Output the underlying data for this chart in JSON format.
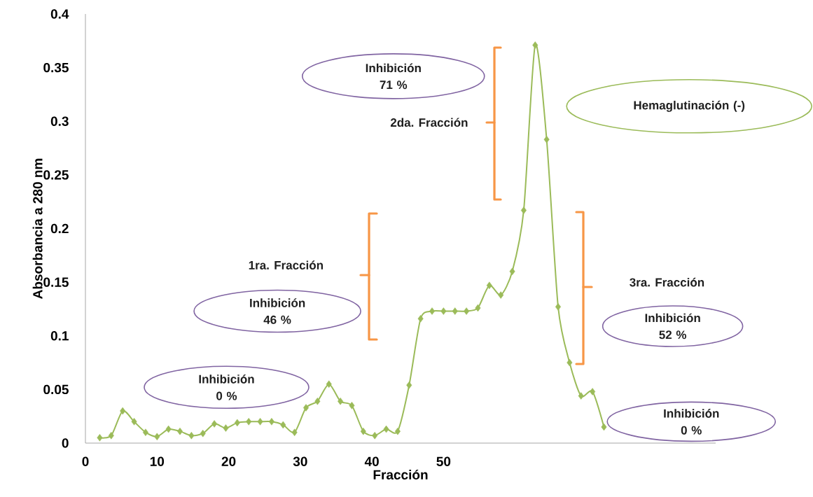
{
  "chart_data": {
    "type": "line",
    "xlabel": "Fracción",
    "ylabel": "Absorbancia a 280 nm",
    "x": [
      2.0,
      3.6,
      5.2,
      6.8,
      8.4,
      10.0,
      11.6,
      13.2,
      14.8,
      16.4,
      18.0,
      19.6,
      21.2,
      22.8,
      24.4,
      26.0,
      27.6,
      29.2,
      30.8,
      32.4,
      34.0,
      35.6,
      37.2,
      38.8,
      40.4,
      42.0,
      43.6,
      45.2,
      46.8,
      48.4,
      50.0,
      51.6,
      53.2,
      54.8,
      56.4,
      58.0,
      59.6,
      61.2,
      62.8,
      64.4,
      66.0,
      67.6,
      69.2,
      70.8,
      72.4
    ],
    "values": [
      0.005,
      0.007,
      0.03,
      0.02,
      0.01,
      0.006,
      0.013,
      0.011,
      0.007,
      0.009,
      0.018,
      0.014,
      0.019,
      0.02,
      0.02,
      0.02,
      0.017,
      0.01,
      0.033,
      0.039,
      0.055,
      0.039,
      0.035,
      0.011,
      0.007,
      0.013,
      0.011,
      0.054,
      0.116,
      0.123,
      0.123,
      0.123,
      0.123,
      0.126,
      0.147,
      0.138,
      0.16,
      0.217,
      0.371,
      0.283,
      0.127,
      0.075,
      0.044,
      0.048,
      0.015
    ],
    "color": "#9bbb59",
    "marker": "diamond",
    "xlim": [
      0,
      88
    ],
    "xticks": [
      0,
      10,
      20,
      30,
      40,
      50
    ],
    "ylim": [
      0,
      0.4
    ],
    "yticks": [
      0,
      0.05,
      0.1,
      0.15,
      0.2,
      0.25,
      0.3,
      0.35,
      0.4
    ],
    "annotations": [
      "1ra. Fracción",
      "2da. Fracción",
      "3ra. Fracción",
      "Inhibición 71 %",
      "Inhibición 46 %",
      "Inhibición 0 %",
      "Inhibición 52 %",
      "Inhibición 0 %",
      "Hemaglutinación (-)"
    ]
  }
}
